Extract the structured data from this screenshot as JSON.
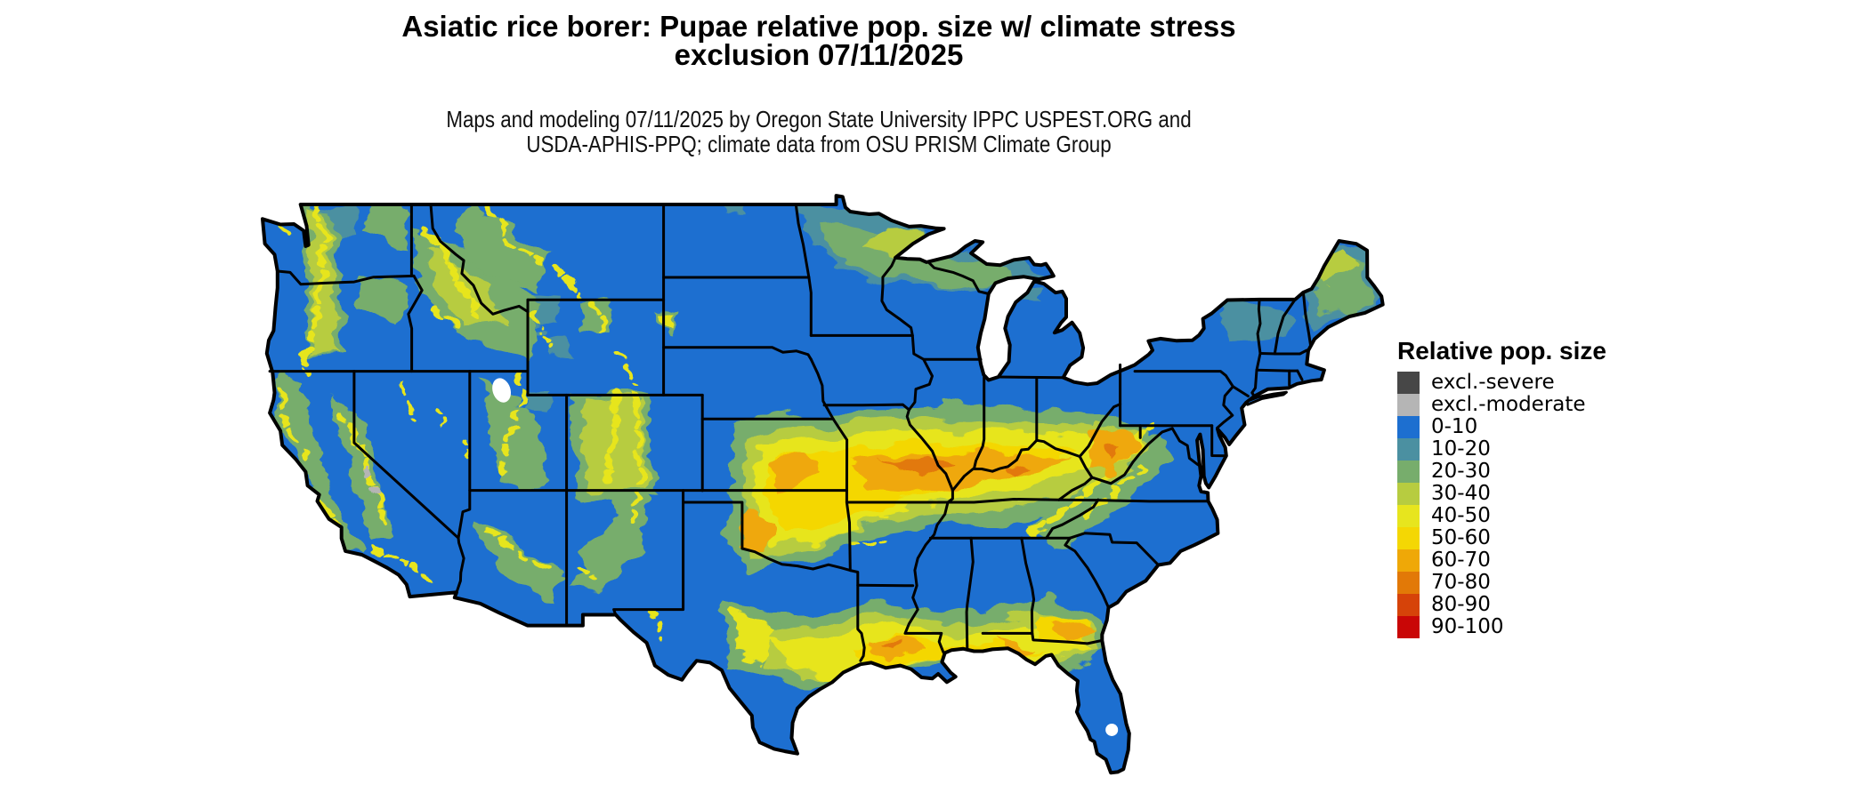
{
  "page": {
    "background": "#ffffff"
  },
  "header": {
    "title_line1": "Asiatic rice borer: Pupae relative pop. size w/ climate stress",
    "title_line2": "exclusion 07/11/2025",
    "subtitle_line1": "Maps and modeling 07/11/2025 by Oregon State University IPPC USPEST.ORG and",
    "subtitle_line2": "USDA-APHIS-PPQ; climate data from OSU PRISM Climate Group"
  },
  "legend": {
    "title": "Relative pop. size",
    "entries": [
      {
        "label": "excl.-severe",
        "color": "#474747"
      },
      {
        "label": "excl.-moderate",
        "color": "#b5b5b5"
      },
      {
        "label": "0-10",
        "color": "#1d6fd0"
      },
      {
        "label": "10-20",
        "color": "#4b90a1"
      },
      {
        "label": "20-30",
        "color": "#77ad6c"
      },
      {
        "label": "30-40",
        "color": "#b7cc40"
      },
      {
        "label": "40-50",
        "color": "#e7e51e"
      },
      {
        "label": "50-60",
        "color": "#f4d704"
      },
      {
        "label": "60-70",
        "color": "#efa807"
      },
      {
        "label": "70-80",
        "color": "#e27907"
      },
      {
        "label": "80-90",
        "color": "#d64309"
      },
      {
        "label": "90-100",
        "color": "#c90606"
      }
    ]
  },
  "map": {
    "kind": "raster choropleth of conterminous United States",
    "units": "relative population size (0-100) with climate stress exclusion",
    "base_value_class": "0-10",
    "outline_color": "#000000",
    "water_and_outside_color": "#ffffff",
    "notable_high_regions": [
      "Ohio Valley belt: Kansas-Missouri-Illinois-Indiana-Kentucky-West Virginia (50-80)",
      "Gulf Coast band: central Texas coast through Louisiana, Florida panhandle, south Georgia (40-70)",
      "Western mountain ranges: Cascades, Sierra Nevada, Rockies, Idaho/Montana ranges (30-60 veins)",
      "Southern Appalachians ridge band (40-60)",
      "Northern Minnesota/Wisconsin/Michigan and Maine (10-40)"
    ]
  }
}
